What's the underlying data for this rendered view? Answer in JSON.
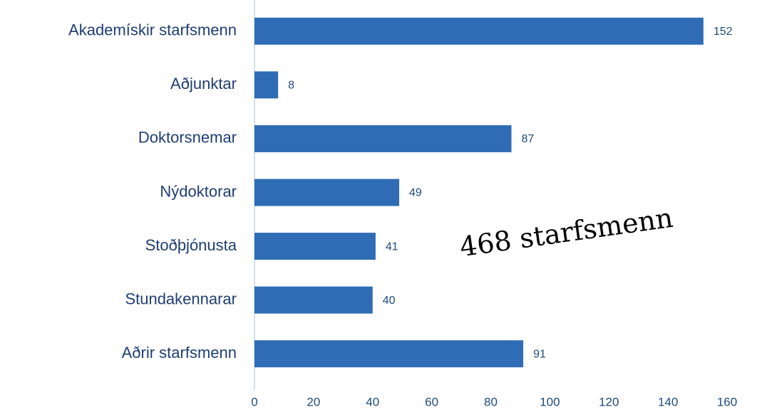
{
  "chart_data": {
    "type": "barh",
    "categories": [
      "Akademískir starfsmenn",
      "Aðjunktar",
      "Doktorsnemar",
      "Nýdoktorar",
      "Stoðþjónusta",
      "Stundakennarar",
      "Aðrir starfsmenn"
    ],
    "values": [
      152,
      8,
      87,
      49,
      41,
      40,
      91
    ],
    "color": "#2f6cb5",
    "xlim": [
      0,
      160
    ],
    "xticks": [
      0,
      20,
      40,
      60,
      80,
      100,
      120,
      140,
      160
    ],
    "grid": false,
    "annotation": "468 starfsmenn"
  }
}
